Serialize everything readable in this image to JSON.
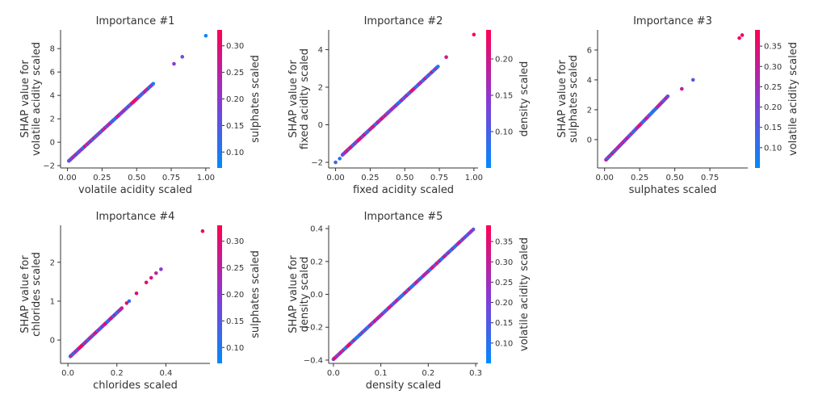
{
  "chart_data": [
    {
      "type": "scatter",
      "title": "Importance #1",
      "xlabel": "volatile acidity scaled",
      "ylabel": [
        "SHAP value for",
        "volatile acidity scaled"
      ],
      "xlim": [
        -0.05,
        1.03
      ],
      "ylim": [
        -2.2,
        9.6
      ],
      "xticks": [
        0.0,
        0.25,
        0.5,
        0.75,
        1.0
      ],
      "xtick_labels": [
        "0.00",
        "0.25",
        "0.50",
        "0.75",
        "1.00"
      ],
      "yticks": [
        -2,
        0,
        2,
        4,
        6,
        8
      ],
      "ytick_labels": [
        "−2",
        "0",
        "2",
        "4",
        "6",
        "8"
      ],
      "colorbar": {
        "label": "sulphates scaled",
        "range": [
          0.07,
          0.33
        ],
        "ticks": [
          0.1,
          0.15,
          0.2,
          0.25,
          0.3
        ],
        "tick_labels": [
          "0.10",
          "0.15",
          "0.20",
          "0.25",
          "0.30"
        ]
      },
      "line": {
        "x": [
          0.01,
          0.62
        ],
        "y": [
          -1.6,
          5.0
        ],
        "count": 95
      },
      "outliers": [
        {
          "x": 0.77,
          "y": 6.7,
          "c": 0.2
        },
        {
          "x": 0.83,
          "y": 7.3,
          "c": 0.16
        },
        {
          "x": 1.0,
          "y": 9.1,
          "c": 0.08
        }
      ]
    },
    {
      "type": "scatter",
      "title": "Importance #2",
      "xlabel": "fixed acidity scaled",
      "ylabel": [
        "SHAP value for",
        "fixed acidity scaled"
      ],
      "xlim": [
        -0.05,
        1.03
      ],
      "ylim": [
        -2.3,
        5.05
      ],
      "xticks": [
        0.0,
        0.25,
        0.5,
        0.75,
        1.0
      ],
      "xtick_labels": [
        "0.00",
        "0.25",
        "0.50",
        "0.75",
        "1.00"
      ],
      "yticks": [
        -2,
        0,
        2,
        4
      ],
      "ytick_labels": [
        "−2",
        "0",
        "2",
        "4"
      ],
      "colorbar": {
        "label": "density scaled",
        "range": [
          0.05,
          0.24
        ],
        "ticks": [
          0.1,
          0.15,
          0.2
        ],
        "tick_labels": [
          "0.10",
          "0.15",
          "0.20"
        ]
      },
      "line": {
        "x": [
          0.05,
          0.74
        ],
        "y": [
          -1.6,
          3.1
        ],
        "count": 95
      },
      "outliers": [
        {
          "x": 0.0,
          "y": -2.0,
          "c": 0.1
        },
        {
          "x": 0.03,
          "y": -1.8,
          "c": 0.07
        },
        {
          "x": 0.8,
          "y": 3.6,
          "c": 0.2
        },
        {
          "x": 1.0,
          "y": 4.8,
          "c": 0.23
        }
      ]
    },
    {
      "type": "scatter",
      "title": "Importance #3",
      "xlabel": "sulphates scaled",
      "ylabel": [
        "SHAP value for",
        "sulphates scaled"
      ],
      "xlim": [
        -0.05,
        1.02
      ],
      "ylim": [
        -1.9,
        7.35
      ],
      "xticks": [
        0.0,
        0.25,
        0.5,
        0.75
      ],
      "xtick_labels": [
        "0.00",
        "0.25",
        "0.50",
        "0.75"
      ],
      "yticks": [
        0,
        2,
        4,
        6
      ],
      "ytick_labels": [
        "0",
        "2",
        "4",
        "6"
      ],
      "colorbar": {
        "label": "volatile acidity scaled",
        "range": [
          0.05,
          0.39
        ],
        "ticks": [
          0.1,
          0.15,
          0.2,
          0.25,
          0.3,
          0.35
        ],
        "tick_labels": [
          "0.10",
          "0.15",
          "0.20",
          "0.25",
          "0.30",
          "0.35"
        ]
      },
      "line": {
        "x": [
          0.01,
          0.45
        ],
        "y": [
          -1.35,
          2.9
        ],
        "count": 80
      },
      "outliers": [
        {
          "x": 0.55,
          "y": 3.4,
          "c": 0.3
        },
        {
          "x": 0.63,
          "y": 4.0,
          "c": 0.15
        },
        {
          "x": 0.96,
          "y": 6.8,
          "c": 0.38
        },
        {
          "x": 0.98,
          "y": 7.0,
          "c": 0.36
        }
      ]
    },
    {
      "type": "scatter",
      "title": "Importance #4",
      "xlabel": "chlorides scaled",
      "ylabel": [
        "SHAP value for",
        "chlorides scaled"
      ],
      "xlim": [
        -0.03,
        0.58
      ],
      "ylim": [
        -0.6,
        2.95
      ],
      "xticks": [
        0.0,
        0.2,
        0.4
      ],
      "xtick_labels": [
        "0.0",
        "0.2",
        "0.4"
      ],
      "yticks": [
        0,
        1,
        2
      ],
      "ytick_labels": [
        "0",
        "1",
        "2"
      ],
      "colorbar": {
        "label": "sulphates scaled",
        "range": [
          0.07,
          0.33
        ],
        "ticks": [
          0.1,
          0.15,
          0.2,
          0.25,
          0.3
        ],
        "tick_labels": [
          "0.10",
          "0.15",
          "0.20",
          "0.25",
          "0.30"
        ]
      },
      "line": {
        "x": [
          0.01,
          0.22
        ],
        "y": [
          -0.42,
          0.82
        ],
        "count": 70
      },
      "outliers": [
        {
          "x": 0.24,
          "y": 0.95,
          "c": 0.3
        },
        {
          "x": 0.25,
          "y": 1.0,
          "c": 0.12
        },
        {
          "x": 0.28,
          "y": 1.2,
          "c": 0.3
        },
        {
          "x": 0.32,
          "y": 1.48,
          "c": 0.3
        },
        {
          "x": 0.34,
          "y": 1.6,
          "c": 0.28
        },
        {
          "x": 0.36,
          "y": 1.72,
          "c": 0.25
        },
        {
          "x": 0.38,
          "y": 1.82,
          "c": 0.2
        },
        {
          "x": 0.55,
          "y": 2.8,
          "c": 0.31
        }
      ]
    },
    {
      "type": "scatter",
      "title": "Importance #5",
      "xlabel": "density scaled",
      "ylabel": [
        "SHAP value for",
        "density scaled"
      ],
      "xlim": [
        -0.01,
        0.305
      ],
      "ylim": [
        -0.42,
        0.42
      ],
      "xticks": [
        0.0,
        0.1,
        0.2,
        0.3
      ],
      "xtick_labels": [
        "0.0",
        "0.1",
        "0.2",
        "0.3"
      ],
      "yticks": [
        -0.4,
        -0.2,
        0.0,
        0.2,
        0.4
      ],
      "ytick_labels": [
        "−0.4",
        "−0.2",
        "0.0",
        "0.2",
        "0.4"
      ],
      "colorbar": {
        "label": "volatile acidity scaled",
        "range": [
          0.05,
          0.39
        ],
        "ticks": [
          0.1,
          0.15,
          0.2,
          0.25,
          0.3,
          0.35
        ],
        "tick_labels": [
          "0.10",
          "0.15",
          "0.20",
          "0.25",
          "0.30",
          "0.35"
        ]
      },
      "line": {
        "x": [
          0.0,
          0.295
        ],
        "y": [
          -0.395,
          0.395
        ],
        "count": 110
      },
      "outliers": []
    }
  ]
}
